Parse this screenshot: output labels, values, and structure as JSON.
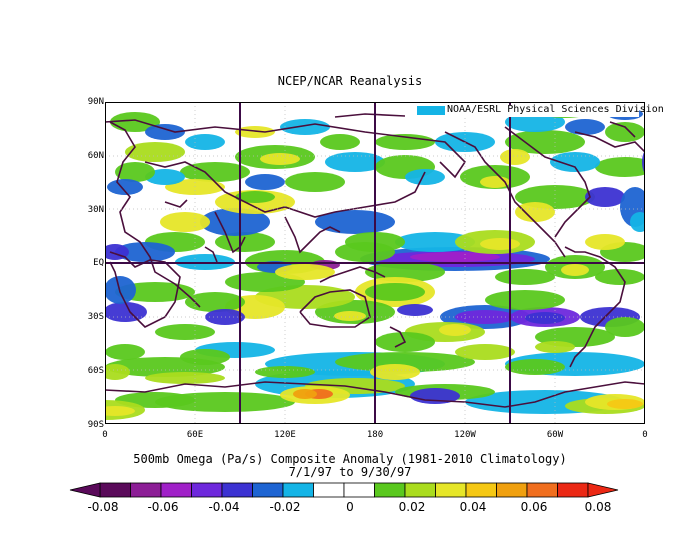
{
  "title": "NCEP/NCAR Reanalysis",
  "attribution": "NOAA/ESRL Physical Sciences Division",
  "lat_labels": [
    "90N",
    "60N",
    "30N",
    "EQ",
    "30S",
    "60S",
    "90S"
  ],
  "lon_labels": [
    "0",
    "60E",
    "120E",
    "180",
    "120W",
    "60W",
    "0"
  ],
  "caption_line1": "500mb Omega (Pa/s) Composite Anomaly (1981-2010 Climatology)",
  "caption_line2": "7/1/97  to 9/30/97",
  "colorbar": {
    "colors": [
      "#5a0a5a",
      "#8c1e96",
      "#a020c8",
      "#6e28dc",
      "#3c32d2",
      "#1e64d2",
      "#14b4e6",
      "#ffffff",
      "#ffffff",
      "#5ac81e",
      "#aadc1e",
      "#e6e628",
      "#f5c814",
      "#f0a00f",
      "#f06e1e",
      "#eb2814"
    ],
    "tick_labels": [
      "-0.08",
      "-0.06",
      "-0.04",
      "-0.02",
      "0",
      "0.02",
      "0.04",
      "0.06",
      "0.08"
    ]
  },
  "legend_name": "500mb Omega Composite Anomaly"
}
